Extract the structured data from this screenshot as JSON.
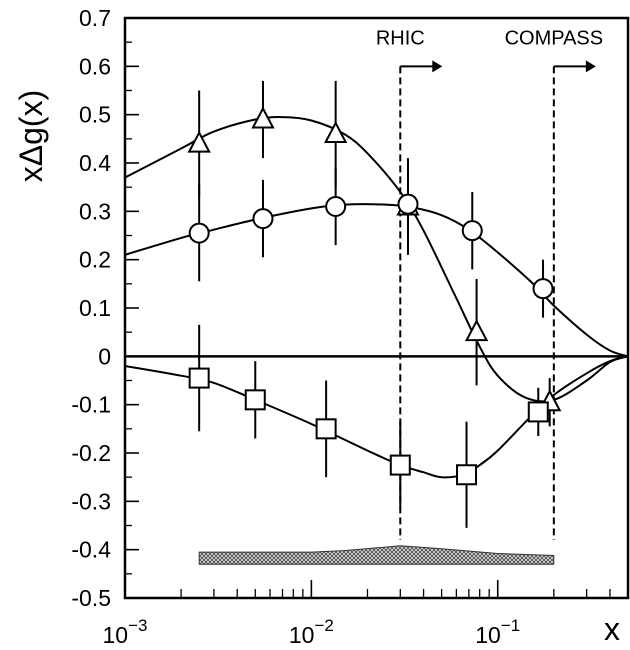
{
  "chart_data": {
    "type": "scatter",
    "title": "",
    "ylabel": "xΔg(x)",
    "xlabel": "x",
    "xscale": "log",
    "xlim": [
      0.001,
      0.5
    ],
    "ylim": [
      -0.5,
      0.7
    ],
    "grid": false,
    "legend": "none",
    "y_ticks": [
      "0.7",
      "0.6",
      "0.5",
      "0.4",
      "0.3",
      "0.2",
      "0.1",
      "0",
      "-0.1",
      "-0.2",
      "-0.3",
      "-0.4",
      "-0.5"
    ],
    "x_ticks": [
      {
        "base": "10",
        "exp": "−3",
        "value": 0.001
      },
      {
        "base": "10",
        "exp": "−2",
        "value": 0.01
      },
      {
        "base": "10",
        "exp": "−1",
        "value": 0.1
      }
    ],
    "series": [
      {
        "marker": "triangle",
        "points": [
          {
            "x": 0.0025,
            "y": 0.44,
            "err": 0.11
          },
          {
            "x": 0.0055,
            "y": 0.49,
            "err": 0.08
          },
          {
            "x": 0.0135,
            "y": 0.46,
            "err": 0.11
          },
          {
            "x": 0.033,
            "y": 0.31,
            "err": 0.1
          },
          {
            "x": 0.077,
            "y": 0.05,
            "err": 0.11
          },
          {
            "x": 0.19,
            "y": -0.095,
            "err": 0.05
          }
        ],
        "curve": [
          {
            "x": 0.001,
            "y": 0.37
          },
          {
            "x": 0.002,
            "y": 0.43
          },
          {
            "x": 0.003,
            "y": 0.465
          },
          {
            "x": 0.005,
            "y": 0.49
          },
          {
            "x": 0.007,
            "y": 0.495
          },
          {
            "x": 0.01,
            "y": 0.488
          },
          {
            "x": 0.015,
            "y": 0.46
          },
          {
            "x": 0.02,
            "y": 0.42
          },
          {
            "x": 0.03,
            "y": 0.34
          },
          {
            "x": 0.04,
            "y": 0.26
          },
          {
            "x": 0.06,
            "y": 0.12
          },
          {
            "x": 0.08,
            "y": 0.02
          },
          {
            "x": 0.1,
            "y": -0.04
          },
          {
            "x": 0.14,
            "y": -0.085
          },
          {
            "x": 0.2,
            "y": -0.09
          },
          {
            "x": 0.3,
            "y": -0.05
          },
          {
            "x": 0.4,
            "y": -0.012
          },
          {
            "x": 0.5,
            "y": 0.0
          }
        ]
      },
      {
        "marker": "circle",
        "points": [
          {
            "x": 0.0025,
            "y": 0.255,
            "err": 0.1
          },
          {
            "x": 0.0055,
            "y": 0.285,
            "err": 0.08
          },
          {
            "x": 0.0135,
            "y": 0.31,
            "err": 0.08
          },
          {
            "x": 0.033,
            "y": 0.315,
            "err": 0.09
          },
          {
            "x": 0.073,
            "y": 0.26,
            "err": 0.08
          },
          {
            "x": 0.175,
            "y": 0.14,
            "err": 0.06
          }
        ],
        "curve": [
          {
            "x": 0.001,
            "y": 0.21
          },
          {
            "x": 0.002,
            "y": 0.245
          },
          {
            "x": 0.003,
            "y": 0.262
          },
          {
            "x": 0.005,
            "y": 0.283
          },
          {
            "x": 0.01,
            "y": 0.306
          },
          {
            "x": 0.015,
            "y": 0.314
          },
          {
            "x": 0.025,
            "y": 0.314
          },
          {
            "x": 0.035,
            "y": 0.308
          },
          {
            "x": 0.05,
            "y": 0.292
          },
          {
            "x": 0.07,
            "y": 0.262
          },
          {
            "x": 0.1,
            "y": 0.215
          },
          {
            "x": 0.15,
            "y": 0.155
          },
          {
            "x": 0.2,
            "y": 0.105
          },
          {
            "x": 0.3,
            "y": 0.045
          },
          {
            "x": 0.4,
            "y": 0.012
          },
          {
            "x": 0.5,
            "y": 0.0
          }
        ]
      },
      {
        "marker": "square",
        "points": [
          {
            "x": 0.0025,
            "y": -0.045,
            "err": 0.11
          },
          {
            "x": 0.005,
            "y": -0.09,
            "err": 0.08
          },
          {
            "x": 0.012,
            "y": -0.15,
            "err": 0.1
          },
          {
            "x": 0.03,
            "y": -0.225,
            "err": 0.09
          },
          {
            "x": 0.068,
            "y": -0.245,
            "err": 0.11
          },
          {
            "x": 0.165,
            "y": -0.115,
            "err": 0.05
          }
        ],
        "curve": [
          {
            "x": 0.001,
            "y": -0.02
          },
          {
            "x": 0.002,
            "y": -0.04
          },
          {
            "x": 0.003,
            "y": -0.055
          },
          {
            "x": 0.005,
            "y": -0.09
          },
          {
            "x": 0.01,
            "y": -0.14
          },
          {
            "x": 0.02,
            "y": -0.195
          },
          {
            "x": 0.03,
            "y": -0.225
          },
          {
            "x": 0.04,
            "y": -0.24
          },
          {
            "x": 0.05,
            "y": -0.25
          },
          {
            "x": 0.065,
            "y": -0.245
          },
          {
            "x": 0.08,
            "y": -0.225
          },
          {
            "x": 0.1,
            "y": -0.195
          },
          {
            "x": 0.15,
            "y": -0.125
          },
          {
            "x": 0.2,
            "y": -0.08
          },
          {
            "x": 0.3,
            "y": -0.035
          },
          {
            "x": 0.4,
            "y": -0.01
          },
          {
            "x": 0.5,
            "y": 0.0
          }
        ]
      }
    ],
    "zero_line": 0,
    "annotations": [
      {
        "text": "RHIC",
        "x_line": 0.03,
        "arrow": "right"
      },
      {
        "text": "COMPASS",
        "x_line": 0.2,
        "arrow": "right"
      }
    ],
    "error_band": {
      "x": [
        0.0025,
        0.005,
        0.01,
        0.015,
        0.03,
        0.05,
        0.1,
        0.2
      ],
      "upper": [
        -0.405,
        -0.405,
        -0.405,
        -0.402,
        -0.392,
        -0.398,
        -0.408,
        -0.412
      ],
      "lower": [
        -0.43,
        -0.43,
        -0.43,
        -0.43,
        -0.43,
        -0.43,
        -0.43,
        -0.43
      ]
    }
  }
}
